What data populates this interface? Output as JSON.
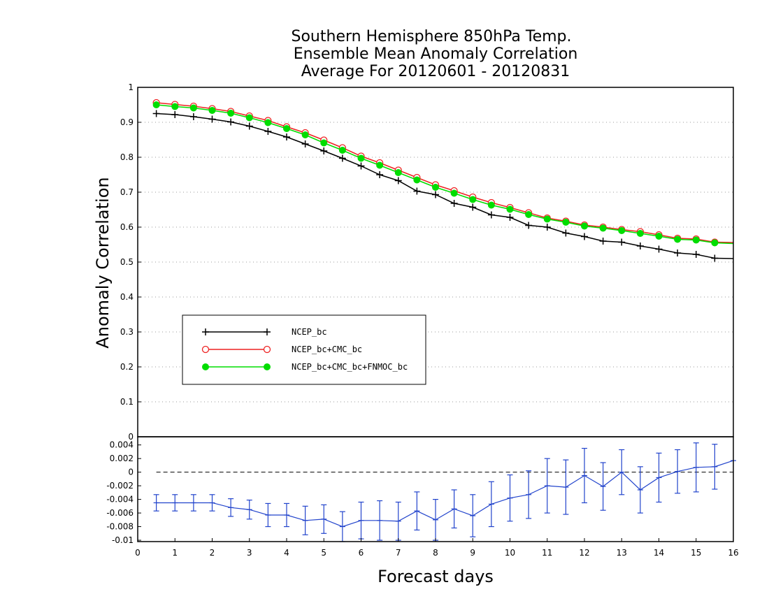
{
  "chart_data": [
    {
      "type": "line",
      "title_lines": [
        "Southern Hemisphere 850hPa Temp.",
        "Ensemble Mean Anomaly Correlation",
        "Average For 20120601 - 20120831"
      ],
      "xlabel": "Forecast days",
      "ylabel": "Anomaly Correlation",
      "xlim": [
        0,
        16
      ],
      "ylim": [
        0,
        1
      ],
      "x_ticks": [
        "0",
        "1",
        "2",
        "3",
        "4",
        "5",
        "6",
        "7",
        "8",
        "9",
        "10",
        "11",
        "12",
        "13",
        "14",
        "15",
        "16"
      ],
      "y_ticks": [
        "0",
        "0.1",
        "0.2",
        "0.3",
        "0.4",
        "0.5",
        "0.6",
        "0.7",
        "0.8",
        "0.9",
        "1"
      ],
      "grid": "horizontal dotted",
      "legend_placement": "lower-left",
      "x": [
        0.5,
        1,
        1.5,
        2,
        2.5,
        3,
        3.5,
        4,
        4.5,
        5,
        5.5,
        6,
        6.5,
        7,
        7.5,
        8,
        8.5,
        9,
        9.5,
        10,
        10.5,
        11,
        11.5,
        12,
        12.5,
        13,
        13.5,
        14,
        14.5,
        15,
        15.5,
        16
      ],
      "series": [
        {
          "name": "NCEP_bc",
          "color": "#000000",
          "marker": "plus",
          "values": [
            0.925,
            0.922,
            0.916,
            0.909,
            0.901,
            0.889,
            0.874,
            0.858,
            0.838,
            0.818,
            0.797,
            0.775,
            0.75,
            0.733,
            0.703,
            0.693,
            0.668,
            0.657,
            0.635,
            0.628,
            0.605,
            0.6,
            0.583,
            0.573,
            0.56,
            0.557,
            0.546,
            0.537,
            0.526,
            0.522,
            0.511,
            0.51
          ]
        },
        {
          "name": "NCEP_bc+CMC_bc",
          "color": "#ee2222",
          "marker": "open-circle",
          "values": [
            0.956,
            0.951,
            0.946,
            0.939,
            0.931,
            0.918,
            0.905,
            0.887,
            0.87,
            0.849,
            0.827,
            0.803,
            0.784,
            0.763,
            0.742,
            0.721,
            0.704,
            0.686,
            0.67,
            0.656,
            0.641,
            0.626,
            0.617,
            0.606,
            0.6,
            0.593,
            0.587,
            0.578,
            0.568,
            0.566,
            0.557,
            0.556
          ]
        },
        {
          "name": "NCEP_bc+CMC_bc+FNMOC_bc",
          "color": "#00dd00",
          "marker": "filled-circle",
          "values": [
            0.95,
            0.945,
            0.941,
            0.934,
            0.926,
            0.913,
            0.899,
            0.882,
            0.864,
            0.841,
            0.82,
            0.797,
            0.777,
            0.756,
            0.735,
            0.714,
            0.697,
            0.679,
            0.663,
            0.651,
            0.636,
            0.623,
            0.614,
            0.603,
            0.597,
            0.59,
            0.582,
            0.574,
            0.565,
            0.563,
            0.555,
            0.553
          ]
        }
      ]
    },
    {
      "type": "line",
      "xlabel": "",
      "ylabel": "",
      "xlim": [
        0,
        16
      ],
      "ylim": [
        -0.0102,
        0.0052
      ],
      "y_ticks": [
        "0.004",
        "0.002",
        "0",
        "-0.002",
        "-0.004",
        "-0.006",
        "-0.008",
        "-0.01"
      ],
      "reference_line": 0,
      "x": [
        0.5,
        1,
        1.5,
        2,
        2.5,
        3,
        3.5,
        4,
        4.5,
        5,
        5.5,
        6,
        6.5,
        7,
        7.5,
        8,
        8.5,
        9,
        9.5,
        10,
        10.5,
        11,
        11.5,
        12,
        12.5,
        13,
        13.5,
        14,
        14.5,
        15,
        15.5,
        16
      ],
      "series": [
        {
          "color": "#2244cc",
          "marker": "dash-with-error-bars",
          "values": [
            -0.0045,
            -0.0045,
            -0.0045,
            -0.0045,
            -0.0052,
            -0.0055,
            -0.0063,
            -0.0063,
            -0.0071,
            -0.0069,
            -0.008,
            -0.0071,
            -0.0071,
            -0.0072,
            -0.0057,
            -0.007,
            -0.0054,
            -0.0064,
            -0.0047,
            -0.0038,
            -0.0033,
            -0.002,
            -0.0022,
            -0.0005,
            -0.0021,
            0.0,
            -0.0026,
            -0.0008,
            0.0001,
            0.0007,
            0.0008,
            0.0017
          ],
          "error_low": [
            -0.0057,
            -0.0057,
            -0.0057,
            -0.0057,
            -0.0065,
            -0.0069,
            -0.008,
            -0.008,
            -0.0092,
            -0.009,
            -0.0102,
            -0.0098,
            -0.01,
            -0.01,
            -0.0085,
            -0.01,
            -0.0082,
            -0.0095,
            -0.008,
            -0.0072,
            -0.0068,
            -0.006,
            -0.0062,
            -0.0045,
            -0.0056,
            -0.0033,
            -0.006,
            -0.0044,
            -0.0031,
            -0.0029,
            -0.0025,
            0.0017
          ],
          "error_high": [
            -0.0033,
            -0.0033,
            -0.0033,
            -0.0033,
            -0.0039,
            -0.0041,
            -0.0046,
            -0.0046,
            -0.005,
            -0.0048,
            -0.0058,
            -0.0044,
            -0.0042,
            -0.0044,
            -0.0029,
            -0.004,
            -0.0026,
            -0.0033,
            -0.0014,
            -0.0004,
            0.0002,
            0.002,
            0.0018,
            0.0035,
            0.0014,
            0.0033,
            0.0008,
            0.0028,
            0.0033,
            0.0043,
            0.0041,
            0.0017
          ]
        }
      ]
    }
  ]
}
